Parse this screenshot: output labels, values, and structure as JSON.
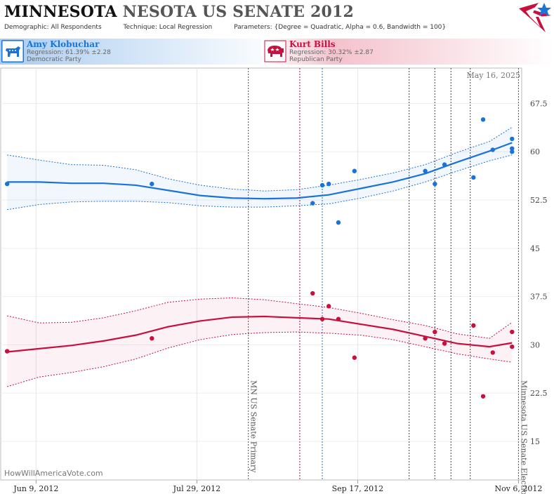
{
  "header": {
    "title_bold": "MINNESOTA",
    "title_rest": "NESOTA US SENATE 2012",
    "demographic_label": "Demographic:",
    "demographic_value": "All Respondents",
    "technique_label": "Technique:",
    "technique_value": "Local Regression",
    "parameters_label": "Parameters:",
    "parameters_value": "{Degree = Quadratic, Alpha = 0.6, Bandwidth = 100}"
  },
  "candidates": [
    {
      "name": "Amy Klobuchar",
      "regression": "Regression: 61.39% ±2.28",
      "party": "Democratic Party",
      "color": "#1a73d9",
      "icon": "donkey-icon"
    },
    {
      "name": "Kurt Bills",
      "regression": "Regression: 30.32% ±2.87",
      "party": "Republican Party",
      "color": "#c8103e",
      "icon": "elephant-icon"
    }
  ],
  "footer": {
    "site": "HowWillAmericaVote.com"
  },
  "chart_data": {
    "type": "scatter",
    "date_stamp": "May 16, 2025",
    "x_ticks": [
      "2012-06-09",
      "2012-07-29",
      "2012-09-17",
      "2012-11-06"
    ],
    "x_tick_labels": [
      "Jun 9, 2012",
      "Jul 29, 2012",
      "Sep 17, 2012",
      "Nov 6, 2012"
    ],
    "xlim": [
      "2012-05-29",
      "2012-11-07"
    ],
    "ylim": [
      9,
      73
    ],
    "y_ticks": [
      15,
      22.5,
      30,
      37.5,
      45,
      52.5,
      60,
      67.5
    ],
    "grid": true,
    "events": [
      {
        "date": "2012-08-14",
        "label": "MN US Senate Primary",
        "color": "#555"
      },
      {
        "date": "2012-08-30",
        "label": "",
        "color": "#a0104a"
      },
      {
        "date": "2012-09-06",
        "label": "",
        "color": "#2a6fb5"
      },
      {
        "date": "2012-10-03",
        "label": "",
        "color": "#444"
      },
      {
        "date": "2012-10-11",
        "label": "",
        "color": "#444"
      },
      {
        "date": "2012-10-16",
        "label": "",
        "color": "#444"
      },
      {
        "date": "2012-10-22",
        "label": "",
        "color": "#444"
      },
      {
        "date": "2012-11-06",
        "label": "Minnesota US Senate Election",
        "color": "#555"
      }
    ],
    "series": [
      {
        "name": "Amy Klobuchar",
        "color": "#1a73d9",
        "points": [
          [
            "2012-05-31",
            55
          ],
          [
            "2012-07-15",
            55
          ],
          [
            "2012-09-03",
            52
          ],
          [
            "2012-09-06",
            54.8
          ],
          [
            "2012-09-08",
            55
          ],
          [
            "2012-09-11",
            49
          ],
          [
            "2012-09-16",
            57
          ],
          [
            "2012-10-08",
            57
          ],
          [
            "2012-10-11",
            55
          ],
          [
            "2012-10-14",
            58
          ],
          [
            "2012-10-23",
            56
          ],
          [
            "2012-10-26",
            65
          ],
          [
            "2012-10-29",
            60.3
          ],
          [
            "2012-11-04",
            62
          ],
          [
            "2012-11-04",
            60.5
          ],
          [
            "2012-11-04",
            60
          ]
        ],
        "trend": [
          [
            "2012-05-31",
            55.3
          ],
          [
            "2012-06-10",
            55.3
          ],
          [
            "2012-06-20",
            55.1
          ],
          [
            "2012-06-30",
            55.1
          ],
          [
            "2012-07-10",
            54.8
          ],
          [
            "2012-07-20",
            54.0
          ],
          [
            "2012-07-30",
            53.2
          ],
          [
            "2012-08-09",
            52.8
          ],
          [
            "2012-08-19",
            52.7
          ],
          [
            "2012-08-29",
            52.8
          ],
          [
            "2012-09-08",
            53.3
          ],
          [
            "2012-09-18",
            54.3
          ],
          [
            "2012-09-28",
            55.3
          ],
          [
            "2012-10-08",
            56.6
          ],
          [
            "2012-10-18",
            58.4
          ],
          [
            "2012-10-28",
            60.1
          ],
          [
            "2012-11-04",
            61.4
          ]
        ],
        "upper": [
          [
            "2012-05-31",
            59.5
          ],
          [
            "2012-06-10",
            58.7
          ],
          [
            "2012-06-20",
            58.0
          ],
          [
            "2012-06-30",
            57.9
          ],
          [
            "2012-07-10",
            57.2
          ],
          [
            "2012-07-20",
            55.8
          ],
          [
            "2012-07-30",
            54.8
          ],
          [
            "2012-08-09",
            54.2
          ],
          [
            "2012-08-19",
            53.9
          ],
          [
            "2012-08-29",
            54.1
          ],
          [
            "2012-09-08",
            54.8
          ],
          [
            "2012-09-18",
            55.7
          ],
          [
            "2012-09-28",
            56.7
          ],
          [
            "2012-10-08",
            58.0
          ],
          [
            "2012-10-18",
            59.9
          ],
          [
            "2012-10-28",
            61.6
          ],
          [
            "2012-11-04",
            63.8
          ]
        ],
        "lower": [
          [
            "2012-05-31",
            51.0
          ],
          [
            "2012-06-10",
            51.8
          ],
          [
            "2012-06-20",
            52.2
          ],
          [
            "2012-06-30",
            52.3
          ],
          [
            "2012-07-10",
            52.3
          ],
          [
            "2012-07-20",
            52.1
          ],
          [
            "2012-07-30",
            51.6
          ],
          [
            "2012-08-09",
            51.4
          ],
          [
            "2012-08-19",
            51.4
          ],
          [
            "2012-08-29",
            51.6
          ],
          [
            "2012-09-08",
            51.9
          ],
          [
            "2012-09-18",
            52.8
          ],
          [
            "2012-09-28",
            53.9
          ],
          [
            "2012-10-08",
            55.3
          ],
          [
            "2012-10-18",
            57.0
          ],
          [
            "2012-10-28",
            58.6
          ],
          [
            "2012-11-04",
            59.5
          ]
        ]
      },
      {
        "name": "Kurt Bills",
        "color": "#c8103e",
        "points": [
          [
            "2012-05-31",
            29
          ],
          [
            "2012-07-15",
            31
          ],
          [
            "2012-09-03",
            38
          ],
          [
            "2012-09-06",
            34
          ],
          [
            "2012-09-08",
            36
          ],
          [
            "2012-09-11",
            34
          ],
          [
            "2012-09-16",
            28
          ],
          [
            "2012-10-08",
            31
          ],
          [
            "2012-10-11",
            32
          ],
          [
            "2012-10-14",
            30.2
          ],
          [
            "2012-10-23",
            33
          ],
          [
            "2012-10-26",
            22
          ],
          [
            "2012-10-29",
            28.8
          ],
          [
            "2012-11-04",
            32
          ],
          [
            "2012-11-04",
            29.7
          ]
        ],
        "trend": [
          [
            "2012-05-31",
            28.9
          ],
          [
            "2012-06-10",
            29.4
          ],
          [
            "2012-06-20",
            29.9
          ],
          [
            "2012-06-30",
            30.6
          ],
          [
            "2012-07-10",
            31.5
          ],
          [
            "2012-07-20",
            32.8
          ],
          [
            "2012-07-30",
            33.7
          ],
          [
            "2012-08-09",
            34.3
          ],
          [
            "2012-08-19",
            34.4
          ],
          [
            "2012-08-29",
            34.2
          ],
          [
            "2012-09-08",
            34.0
          ],
          [
            "2012-09-18",
            33.2
          ],
          [
            "2012-09-28",
            32.4
          ],
          [
            "2012-10-08",
            31.3
          ],
          [
            "2012-10-18",
            30.2
          ],
          [
            "2012-10-28",
            29.7
          ],
          [
            "2012-11-04",
            30.3
          ]
        ],
        "upper": [
          [
            "2012-05-31",
            34.5
          ],
          [
            "2012-06-10",
            33.4
          ],
          [
            "2012-06-20",
            33.5
          ],
          [
            "2012-06-30",
            34.2
          ],
          [
            "2012-07-10",
            35.3
          ],
          [
            "2012-07-20",
            36.6
          ],
          [
            "2012-07-30",
            37.1
          ],
          [
            "2012-08-09",
            37.3
          ],
          [
            "2012-08-19",
            37.0
          ],
          [
            "2012-08-29",
            36.4
          ],
          [
            "2012-09-08",
            35.8
          ],
          [
            "2012-09-18",
            34.9
          ],
          [
            "2012-09-28",
            33.9
          ],
          [
            "2012-10-08",
            33.0
          ],
          [
            "2012-10-18",
            31.7
          ],
          [
            "2012-10-28",
            31.0
          ],
          [
            "2012-11-04",
            33.5
          ]
        ],
        "lower": [
          [
            "2012-05-31",
            23.5
          ],
          [
            "2012-06-10",
            25.0
          ],
          [
            "2012-06-20",
            25.7
          ],
          [
            "2012-06-30",
            26.6
          ],
          [
            "2012-07-10",
            27.8
          ],
          [
            "2012-07-20",
            29.5
          ],
          [
            "2012-07-30",
            30.8
          ],
          [
            "2012-08-09",
            31.6
          ],
          [
            "2012-08-19",
            31.9
          ],
          [
            "2012-08-29",
            32.0
          ],
          [
            "2012-09-08",
            31.8
          ],
          [
            "2012-09-18",
            31.5
          ],
          [
            "2012-09-28",
            30.8
          ],
          [
            "2012-10-08",
            29.7
          ],
          [
            "2012-10-18",
            28.6
          ],
          [
            "2012-10-28",
            27.8
          ],
          [
            "2012-11-04",
            27.3
          ]
        ]
      }
    ]
  }
}
